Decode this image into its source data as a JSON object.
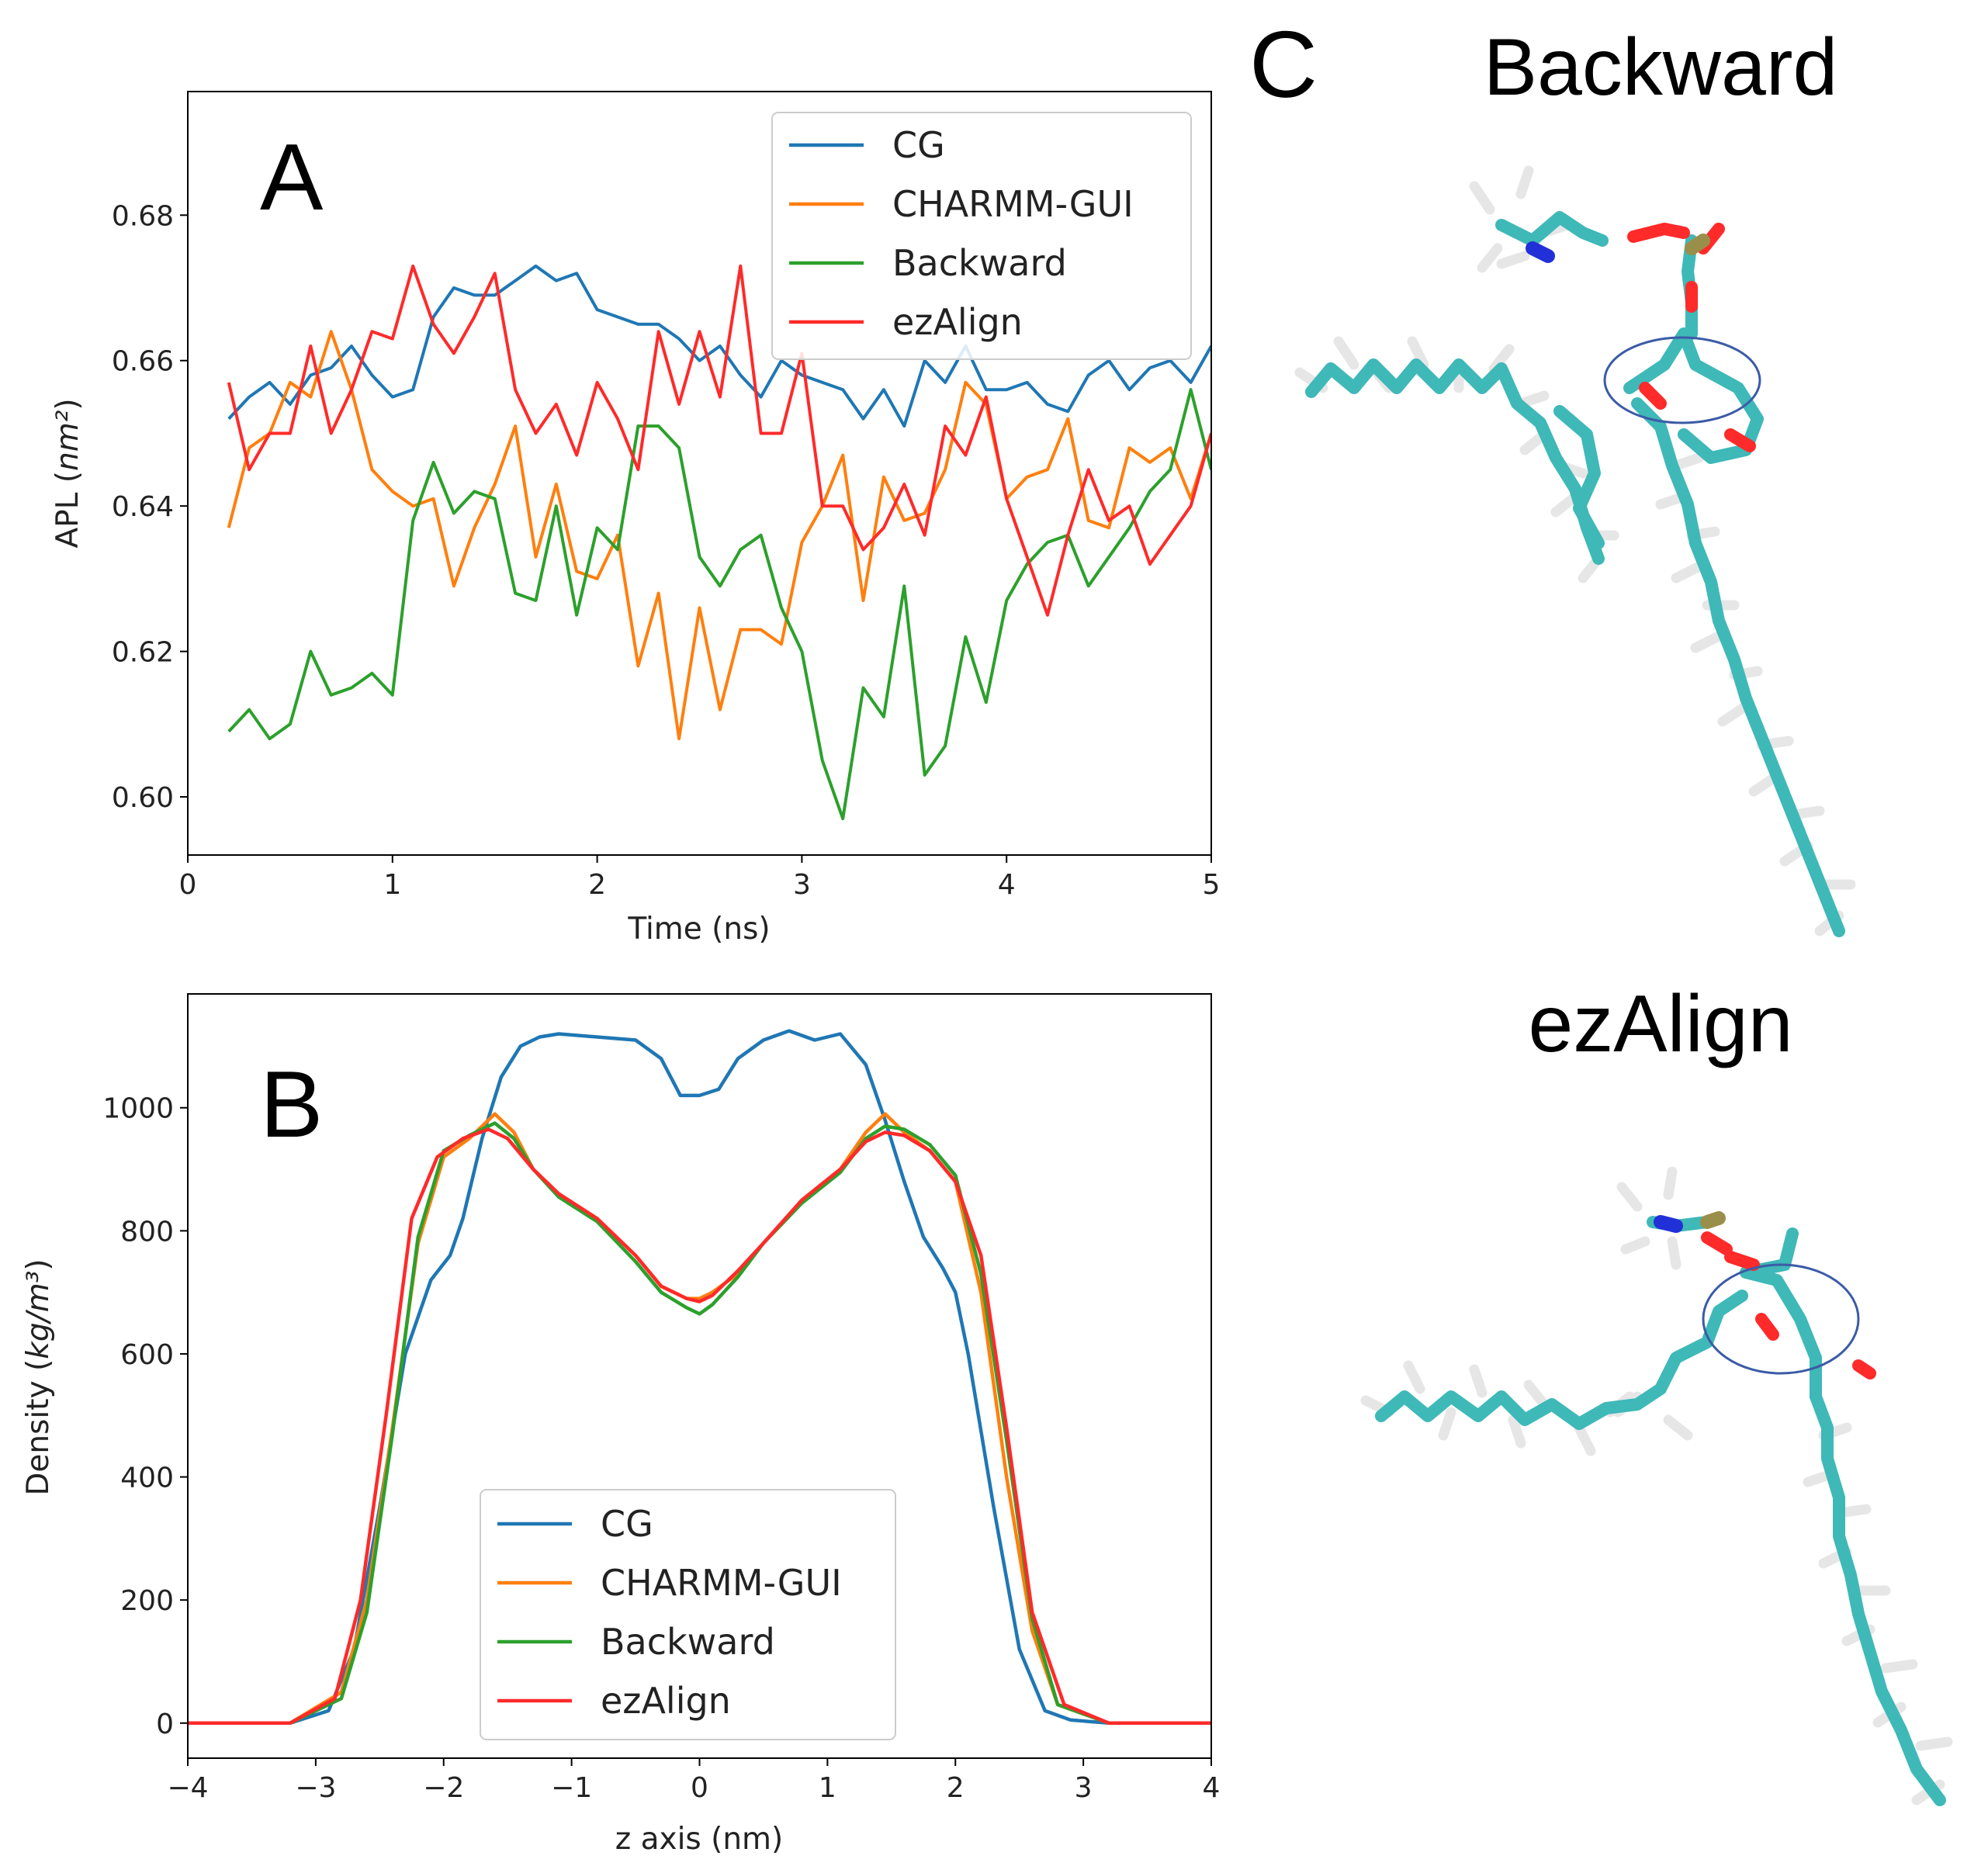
{
  "colors": {
    "CG": "#1f77b4",
    "CHARMM-GUI": "#ff7f0e",
    "Backward": "#2ca02c",
    "ezAlign": "#ff2a2a"
  },
  "panels": {
    "A": {
      "letter": "A"
    },
    "B": {
      "letter": "B"
    },
    "C": {
      "letter": "C",
      "top_title": "Backward",
      "bottom_title": "ezAlign"
    }
  },
  "chart_data": [
    {
      "id": "A",
      "type": "line",
      "title": "",
      "xlabel": "Time (ns)",
      "ylabel": "APL (nm²)",
      "xlim": [
        0,
        5
      ],
      "ylim": [
        0.592,
        0.697
      ],
      "xticks": [
        "0",
        "1",
        "2",
        "3",
        "4",
        "5"
      ],
      "yticks": [
        "0.60",
        "0.62",
        "0.64",
        "0.66",
        "0.68"
      ],
      "legend_position": "top-right",
      "x": [
        0.2,
        0.3,
        0.4,
        0.5,
        0.6,
        0.7,
        0.8,
        0.9,
        1.0,
        1.1,
        1.2,
        1.3,
        1.4,
        1.5,
        1.6,
        1.7,
        1.8,
        1.9,
        2.0,
        2.1,
        2.2,
        2.3,
        2.4,
        2.5,
        2.6,
        2.7,
        2.8,
        2.9,
        3.0,
        3.1,
        3.2,
        3.3,
        3.4,
        3.5,
        3.6,
        3.7,
        3.8,
        3.9,
        4.0,
        4.1,
        4.2,
        4.3,
        4.4,
        4.5,
        4.6,
        4.7,
        4.8,
        4.9,
        5.0
      ],
      "series": [
        {
          "name": "CG",
          "values": [
            0.652,
            0.655,
            0.657,
            0.654,
            0.658,
            0.659,
            0.662,
            0.658,
            0.655,
            0.656,
            0.666,
            0.67,
            0.669,
            0.669,
            0.671,
            0.673,
            0.671,
            0.672,
            0.667,
            0.666,
            0.665,
            0.665,
            0.663,
            0.66,
            0.662,
            0.658,
            0.655,
            0.66,
            0.658,
            0.657,
            0.656,
            0.652,
            0.656,
            0.651,
            0.66,
            0.657,
            0.662,
            0.656,
            0.656,
            0.657,
            0.654,
            0.653,
            0.658,
            0.66,
            0.656,
            0.659,
            0.66,
            0.657,
            0.662
          ]
        },
        {
          "name": "CHARMM-GUI",
          "values": [
            0.637,
            0.648,
            0.65,
            0.657,
            0.655,
            0.664,
            0.656,
            0.645,
            0.642,
            0.64,
            0.641,
            0.629,
            0.637,
            0.643,
            0.651,
            0.633,
            0.643,
            0.631,
            0.63,
            0.636,
            0.618,
            0.628,
            0.608,
            0.626,
            0.612,
            0.623,
            0.623,
            0.621,
            0.635,
            0.64,
            0.647,
            0.627,
            0.644,
            0.638,
            0.639,
            0.645,
            0.657,
            0.654,
            0.641,
            0.644,
            0.645,
            0.652,
            0.638,
            0.637,
            0.648,
            0.646,
            0.648,
            0.641,
            0.65
          ]
        },
        {
          "name": "Backward",
          "values": [
            0.609,
            0.612,
            0.608,
            0.61,
            0.62,
            0.614,
            0.615,
            0.617,
            0.614,
            0.638,
            0.646,
            0.639,
            0.642,
            0.641,
            0.628,
            0.627,
            0.64,
            0.625,
            0.637,
            0.634,
            0.651,
            0.651,
            0.648,
            0.633,
            0.629,
            0.634,
            0.636,
            0.626,
            0.62,
            0.605,
            0.597,
            0.615,
            0.611,
            0.629,
            0.603,
            0.607,
            0.622,
            0.613,
            0.627,
            0.632,
            0.635,
            0.636,
            0.629,
            0.633,
            0.637,
            0.642,
            0.645,
            0.656,
            0.645
          ]
        },
        {
          "name": "ezAlign",
          "values": [
            0.657,
            0.645,
            0.65,
            0.65,
            0.662,
            0.65,
            0.656,
            0.664,
            0.663,
            0.673,
            0.665,
            0.661,
            0.666,
            0.672,
            0.656,
            0.65,
            0.654,
            0.647,
            0.657,
            0.652,
            0.645,
            0.664,
            0.654,
            0.664,
            0.655,
            0.673,
            0.65,
            0.65,
            0.661,
            0.64,
            0.64,
            0.634,
            0.637,
            0.643,
            0.636,
            0.651,
            0.647,
            0.655,
            0.641,
            0.633,
            0.625,
            0.636,
            0.645,
            0.638,
            0.64,
            0.632,
            0.636,
            0.64,
            0.65
          ]
        }
      ]
    },
    {
      "id": "B",
      "type": "line",
      "title": "",
      "xlabel": "z axis (nm)",
      "ylabel": "Density (kg/m³)",
      "xlim": [
        -4,
        4
      ],
      "ylim": [
        -57,
        1185
      ],
      "xticks": [
        "−4",
        "−3",
        "−2",
        "−1",
        "0",
        "1",
        "2",
        "3",
        "4"
      ],
      "yticks": [
        "0",
        "200",
        "400",
        "600",
        "800",
        "1000"
      ],
      "legend_position": "lower center",
      "series": [
        {
          "name": "CG",
          "x": [
            -4,
            -3.2,
            -2.9,
            -2.7,
            -2.5,
            -2.3,
            -2.1,
            -1.95,
            -1.85,
            -1.7,
            -1.55,
            -1.4,
            -1.25,
            -1.1,
            -0.8,
            -0.5,
            -0.3,
            -0.15,
            0,
            0.15,
            0.3,
            0.5,
            0.7,
            0.9,
            1.1,
            1.3,
            1.45,
            1.6,
            1.75,
            1.9,
            2.0,
            2.1,
            2.3,
            2.5,
            2.7,
            2.9,
            3.2,
            4
          ],
          "y": [
            0,
            0,
            20,
            120,
            350,
            600,
            720,
            760,
            820,
            950,
            1050,
            1100,
            1115,
            1120,
            1115,
            1110,
            1080,
            1020,
            1020,
            1030,
            1080,
            1110,
            1125,
            1110,
            1120,
            1070,
            980,
            880,
            790,
            740,
            700,
            600,
            350,
            120,
            20,
            5,
            0,
            0
          ]
        },
        {
          "name": "CHARMM-GUI",
          "x": [
            -4,
            -3.2,
            -2.8,
            -2.6,
            -2.4,
            -2.2,
            -2.0,
            -1.8,
            -1.6,
            -1.45,
            -1.3,
            -1.1,
            -0.8,
            -0.5,
            -0.3,
            -0.1,
            0,
            0.1,
            0.3,
            0.5,
            0.8,
            1.1,
            1.3,
            1.45,
            1.6,
            1.8,
            2.0,
            2.2,
            2.4,
            2.6,
            2.8,
            3.2,
            4
          ],
          "y": [
            0,
            0,
            50,
            200,
            480,
            780,
            920,
            950,
            990,
            960,
            900,
            860,
            820,
            760,
            710,
            690,
            690,
            700,
            730,
            780,
            850,
            900,
            960,
            990,
            960,
            930,
            880,
            700,
            400,
            150,
            30,
            0,
            0
          ]
        },
        {
          "name": "Backward",
          "x": [
            -4,
            -3.2,
            -2.8,
            -2.6,
            -2.4,
            -2.2,
            -2.0,
            -1.8,
            -1.6,
            -1.45,
            -1.3,
            -1.1,
            -0.8,
            -0.5,
            -0.3,
            -0.1,
            0,
            0.1,
            0.3,
            0.5,
            0.8,
            1.1,
            1.3,
            1.45,
            1.6,
            1.8,
            2.0,
            2.2,
            2.4,
            2.6,
            2.8,
            3.2,
            4
          ],
          "y": [
            0,
            0,
            40,
            180,
            470,
            790,
            930,
            955,
            975,
            950,
            900,
            855,
            815,
            750,
            700,
            675,
            665,
            680,
            725,
            780,
            845,
            895,
            950,
            970,
            965,
            940,
            890,
            730,
            460,
            170,
            30,
            0,
            0
          ]
        },
        {
          "name": "ezAlign",
          "x": [
            -4,
            -3.2,
            -2.85,
            -2.65,
            -2.45,
            -2.25,
            -2.05,
            -1.85,
            -1.65,
            -1.5,
            -1.3,
            -1.1,
            -0.8,
            -0.5,
            -0.3,
            -0.1,
            0,
            0.1,
            0.3,
            0.5,
            0.8,
            1.1,
            1.3,
            1.45,
            1.6,
            1.8,
            2.0,
            2.2,
            2.4,
            2.6,
            2.85,
            3.2,
            4
          ],
          "y": [
            0,
            0,
            40,
            200,
            500,
            820,
            920,
            950,
            965,
            950,
            900,
            860,
            820,
            760,
            710,
            690,
            685,
            695,
            735,
            780,
            850,
            900,
            945,
            960,
            955,
            930,
            880,
            760,
            480,
            180,
            30,
            0,
            0
          ]
        }
      ]
    }
  ]
}
